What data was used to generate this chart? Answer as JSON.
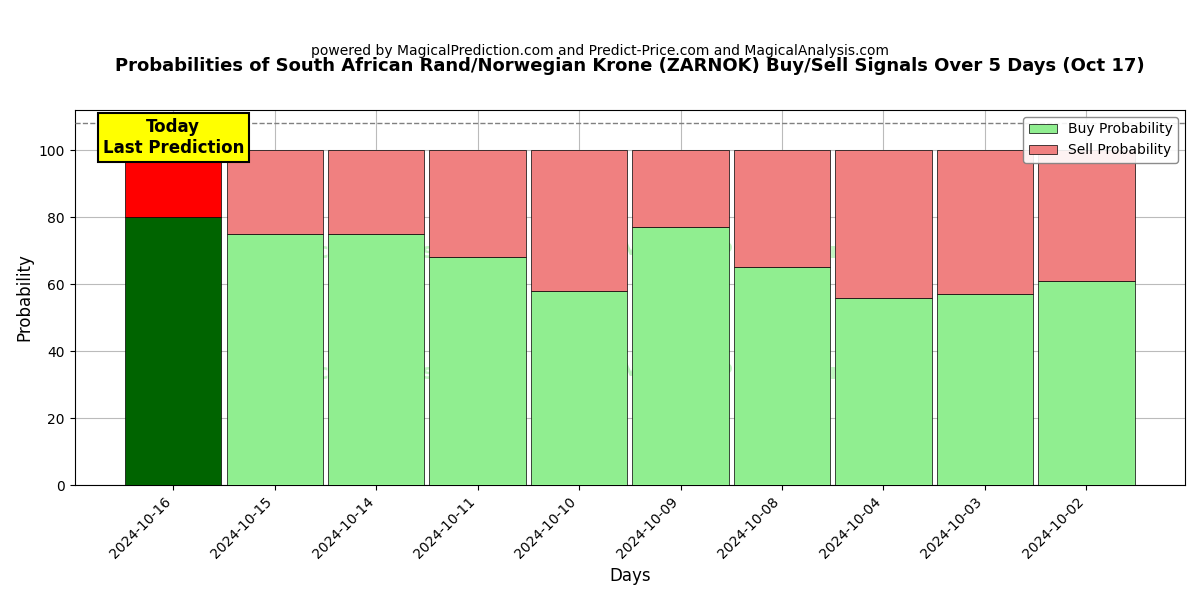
{
  "title": "Probabilities of South African Rand/Norwegian Krone (ZARNOK) Buy/Sell Signals Over 5 Days (Oct 17)",
  "subtitle": "powered by MagicalPrediction.com and Predict-Price.com and MagicalAnalysis.com",
  "xlabel": "Days",
  "ylabel": "Probability",
  "dates": [
    "2024-10-16",
    "2024-10-15",
    "2024-10-14",
    "2024-10-11",
    "2024-10-10",
    "2024-10-09",
    "2024-10-08",
    "2024-10-04",
    "2024-10-03",
    "2024-10-02"
  ],
  "buy_values": [
    80,
    75,
    75,
    68,
    58,
    77,
    65,
    56,
    57,
    61
  ],
  "sell_values": [
    20,
    25,
    25,
    32,
    42,
    23,
    35,
    44,
    43,
    39
  ],
  "today_buy_color": "#006400",
  "today_sell_color": "#FF0000",
  "buy_color": "#90EE90",
  "sell_color": "#F08080",
  "today_annotation_bg": "#FFFF00",
  "today_annotation_text": "Today\nLast Prediction",
  "ylim_max": 112,
  "yticks": [
    0,
    20,
    40,
    60,
    80,
    100
  ],
  "dashed_line_y": 108,
  "watermark_text1": "MagicalAnalysis.com",
  "watermark_text2": "MagicalPrediction.com",
  "legend_buy_label": "Buy Probability",
  "legend_sell_label": "Sell Probability",
  "background_color": "#ffffff",
  "grid_color": "#bbbbbb",
  "bar_width": 0.95
}
